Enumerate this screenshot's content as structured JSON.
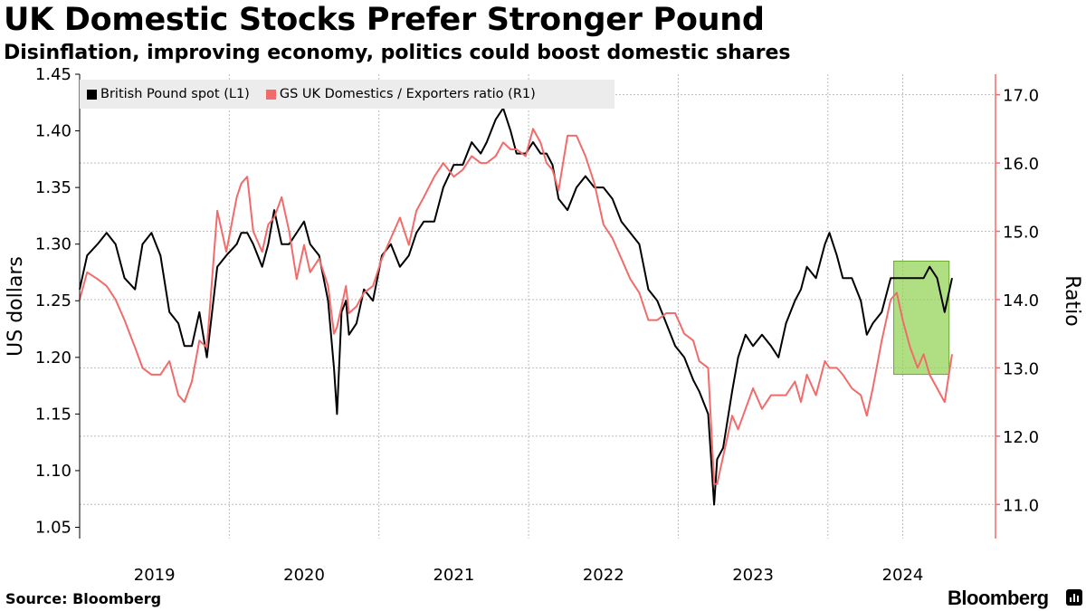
{
  "header": {
    "title": "UK Domestic Stocks Prefer Stronger Pound",
    "subtitle": "Disinflation, improving economy, politics could boost domestic shares"
  },
  "footer": {
    "source": "Source: Bloomberg",
    "brand": "Bloomberg"
  },
  "colors": {
    "gbp": "#000000",
    "ratio": "#f26b6b",
    "right_axis": "#f26b6b",
    "highlight_fill": "#8fd14f",
    "highlight_border": "#6aa830",
    "grid": "#bbbbbb",
    "legend_bg": "#ececec"
  },
  "chart_data": {
    "type": "line",
    "title": "UK Domestic Stocks Prefer Stronger Pound",
    "subtitle": "Disinflation, improving economy, politics could boost domestic shares",
    "x_range": [
      2018.5,
      2024.62
    ],
    "x_ticks": [
      {
        "label": "2019",
        "pos": 2019.0
      },
      {
        "label": "2020",
        "pos": 2020.0
      },
      {
        "label": "2021",
        "pos": 2021.0
      },
      {
        "label": "2022",
        "pos": 2022.0
      },
      {
        "label": "2023",
        "pos": 2023.0
      },
      {
        "label": "2024",
        "pos": 2024.0
      }
    ],
    "y_left": {
      "label": "US dollars",
      "range": [
        1.04,
        1.45
      ],
      "ticks": [
        "1.05",
        "1.10",
        "1.15",
        "1.20",
        "1.25",
        "1.30",
        "1.35",
        "1.40",
        "1.45"
      ]
    },
    "y_right": {
      "label": "Ratio",
      "range": [
        10.5,
        17.3
      ],
      "ticks": [
        "11.0",
        "12.0",
        "13.0",
        "14.0",
        "15.0",
        "16.0",
        "17.0"
      ]
    },
    "legend": [
      {
        "name": "British Pound spot (L1)",
        "color": "#000000"
      },
      {
        "name": "GS UK Domestics / Exporters ratio (R1)",
        "color": "#f26b6b"
      }
    ],
    "highlight": {
      "x_start": 2023.94,
      "x_end": 2024.31,
      "y_left_start": 1.185,
      "y_left_end": 1.285
    },
    "series": [
      {
        "name": "British Pound spot (L1)",
        "axis": "left",
        "x": [
          2018.5,
          2018.55,
          2018.62,
          2018.68,
          2018.74,
          2018.8,
          2018.87,
          2018.92,
          2018.98,
          2019.04,
          2019.1,
          2019.16,
          2019.2,
          2019.25,
          2019.3,
          2019.35,
          2019.42,
          2019.48,
          2019.55,
          2019.58,
          2019.62,
          2019.66,
          2019.72,
          2019.76,
          2019.8,
          2019.85,
          2019.9,
          2019.95,
          2020.0,
          2020.04,
          2020.1,
          2020.16,
          2020.2,
          2020.22,
          2020.25,
          2020.28,
          2020.3,
          2020.35,
          2020.4,
          2020.46,
          2020.52,
          2020.58,
          2020.64,
          2020.7,
          2020.75,
          2020.8,
          2020.87,
          2020.93,
          2021.0,
          2021.06,
          2021.12,
          2021.18,
          2021.22,
          2021.28,
          2021.33,
          2021.38,
          2021.42,
          2021.48,
          2021.53,
          2021.58,
          2021.62,
          2021.66,
          2021.7,
          2021.76,
          2021.82,
          2021.88,
          2021.94,
          2022.0,
          2022.06,
          2022.12,
          2022.18,
          2022.24,
          2022.3,
          2022.36,
          2022.42,
          2022.48,
          2022.54,
          2022.6,
          2022.64,
          2022.7,
          2022.74,
          2022.76,
          2022.8,
          2022.86,
          2022.9,
          2022.95,
          2023.0,
          2023.06,
          2023.12,
          2023.17,
          2023.22,
          2023.28,
          2023.32,
          2023.36,
          2023.42,
          2023.48,
          2023.51,
          2023.56,
          2023.6,
          2023.66,
          2023.72,
          2023.76,
          2023.8,
          2023.86,
          2023.92,
          2023.96,
          2024.0,
          2024.05,
          2024.1,
          2024.14,
          2024.18,
          2024.23,
          2024.28,
          2024.33
        ],
        "values": [
          1.26,
          1.29,
          1.3,
          1.31,
          1.3,
          1.27,
          1.26,
          1.3,
          1.31,
          1.29,
          1.24,
          1.23,
          1.21,
          1.21,
          1.24,
          1.2,
          1.28,
          1.29,
          1.3,
          1.31,
          1.31,
          1.3,
          1.28,
          1.3,
          1.33,
          1.3,
          1.3,
          1.31,
          1.32,
          1.3,
          1.29,
          1.25,
          1.19,
          1.15,
          1.24,
          1.25,
          1.22,
          1.23,
          1.26,
          1.25,
          1.29,
          1.3,
          1.28,
          1.29,
          1.31,
          1.32,
          1.32,
          1.35,
          1.37,
          1.37,
          1.39,
          1.38,
          1.39,
          1.41,
          1.42,
          1.4,
          1.38,
          1.38,
          1.39,
          1.38,
          1.38,
          1.37,
          1.34,
          1.33,
          1.35,
          1.36,
          1.35,
          1.35,
          1.34,
          1.32,
          1.31,
          1.3,
          1.26,
          1.25,
          1.23,
          1.21,
          1.2,
          1.18,
          1.17,
          1.15,
          1.07,
          1.11,
          1.12,
          1.17,
          1.2,
          1.22,
          1.21,
          1.22,
          1.21,
          1.2,
          1.23,
          1.25,
          1.26,
          1.28,
          1.27,
          1.3,
          1.31,
          1.29,
          1.27,
          1.27,
          1.25,
          1.22,
          1.23,
          1.24,
          1.27,
          1.27,
          1.27,
          1.27,
          1.27,
          1.27,
          1.28,
          1.27,
          1.24,
          1.27
        ]
      },
      {
        "name": "GS UK Domestics / Exporters ratio (R1)",
        "axis": "right",
        "x": [
          2018.5,
          2018.55,
          2018.62,
          2018.68,
          2018.74,
          2018.8,
          2018.87,
          2018.92,
          2018.98,
          2019.04,
          2019.1,
          2019.16,
          2019.2,
          2019.25,
          2019.3,
          2019.35,
          2019.42,
          2019.48,
          2019.55,
          2019.58,
          2019.62,
          2019.66,
          2019.72,
          2019.76,
          2019.8,
          2019.85,
          2019.9,
          2019.95,
          2020.0,
          2020.04,
          2020.1,
          2020.16,
          2020.2,
          2020.22,
          2020.25,
          2020.28,
          2020.3,
          2020.35,
          2020.4,
          2020.46,
          2020.52,
          2020.58,
          2020.64,
          2020.7,
          2020.75,
          2020.8,
          2020.87,
          2020.93,
          2021.0,
          2021.06,
          2021.12,
          2021.18,
          2021.22,
          2021.28,
          2021.33,
          2021.38,
          2021.42,
          2021.48,
          2021.53,
          2021.58,
          2021.62,
          2021.66,
          2021.7,
          2021.76,
          2021.82,
          2021.88,
          2021.94,
          2022.0,
          2022.06,
          2022.12,
          2022.18,
          2022.24,
          2022.3,
          2022.36,
          2022.42,
          2022.48,
          2022.54,
          2022.6,
          2022.64,
          2022.7,
          2022.74,
          2022.76,
          2022.8,
          2022.86,
          2022.9,
          2022.95,
          2023.0,
          2023.06,
          2023.12,
          2023.17,
          2023.22,
          2023.28,
          2023.32,
          2023.36,
          2023.42,
          2023.48,
          2023.51,
          2023.56,
          2023.6,
          2023.66,
          2023.72,
          2023.76,
          2023.8,
          2023.86,
          2023.92,
          2023.96,
          2024.0,
          2024.05,
          2024.1,
          2024.14,
          2024.18,
          2024.23,
          2024.28,
          2024.33
        ],
        "values": [
          14.0,
          14.4,
          14.3,
          14.2,
          14.0,
          13.7,
          13.3,
          13.0,
          12.9,
          12.9,
          13.1,
          12.6,
          12.5,
          12.8,
          13.4,
          13.3,
          15.3,
          14.7,
          15.5,
          15.7,
          15.8,
          15.0,
          14.7,
          15.1,
          15.2,
          15.5,
          15.0,
          14.3,
          14.8,
          14.4,
          14.6,
          14.2,
          13.5,
          13.6,
          13.9,
          14.2,
          13.8,
          13.9,
          14.1,
          14.2,
          14.6,
          14.9,
          15.2,
          14.8,
          15.3,
          15.5,
          15.8,
          16.0,
          15.8,
          15.9,
          16.1,
          16.0,
          16.0,
          16.1,
          16.3,
          16.2,
          16.2,
          16.1,
          16.5,
          16.3,
          16.0,
          15.9,
          15.6,
          16.4,
          16.4,
          16.1,
          15.7,
          15.1,
          14.9,
          14.6,
          14.3,
          14.1,
          13.7,
          13.7,
          13.8,
          13.8,
          13.5,
          13.4,
          13.1,
          13.0,
          11.3,
          11.3,
          11.7,
          12.3,
          12.1,
          12.4,
          12.7,
          12.4,
          12.6,
          12.6,
          12.6,
          12.8,
          12.5,
          12.9,
          12.6,
          13.1,
          13.0,
          13.0,
          12.9,
          12.7,
          12.6,
          12.3,
          12.7,
          13.4,
          14.0,
          14.1,
          13.7,
          13.3,
          13.0,
          13.2,
          12.9,
          12.7,
          12.5,
          13.2
        ]
      }
    ]
  }
}
